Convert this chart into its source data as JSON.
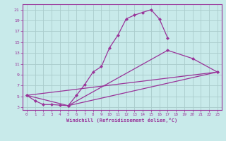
{
  "xlabel": "Windchill (Refroidissement éolien,°C)",
  "bg_color": "#c8eaea",
  "line_color": "#993399",
  "grid_color": "#aacccc",
  "xlim": [
    -0.5,
    23.5
  ],
  "ylim": [
    2.5,
    22
  ],
  "xticks": [
    0,
    1,
    2,
    3,
    4,
    5,
    6,
    7,
    8,
    9,
    10,
    11,
    12,
    13,
    14,
    15,
    16,
    17,
    18,
    19,
    20,
    21,
    22,
    23
  ],
  "yticks": [
    3,
    5,
    7,
    9,
    11,
    13,
    15,
    17,
    19,
    21
  ],
  "s1x": [
    0,
    1,
    2,
    3,
    4,
    5,
    6,
    7,
    8,
    9,
    10,
    11,
    12,
    13,
    14,
    15,
    16,
    17
  ],
  "s1y": [
    5.2,
    4.2,
    3.5,
    3.5,
    3.4,
    3.3,
    5.2,
    7.2,
    9.5,
    10.5,
    14.0,
    16.3,
    19.3,
    20.0,
    20.5,
    21.0,
    19.3,
    15.8
  ],
  "s2x": [
    5,
    17,
    20,
    23
  ],
  "s2y": [
    3.3,
    13.5,
    12.0,
    9.5
  ],
  "s3x": [
    0,
    23
  ],
  "s3y": [
    5.2,
    9.5
  ],
  "s4x": [
    0,
    5,
    23
  ],
  "s4y": [
    5.2,
    3.3,
    9.5
  ]
}
